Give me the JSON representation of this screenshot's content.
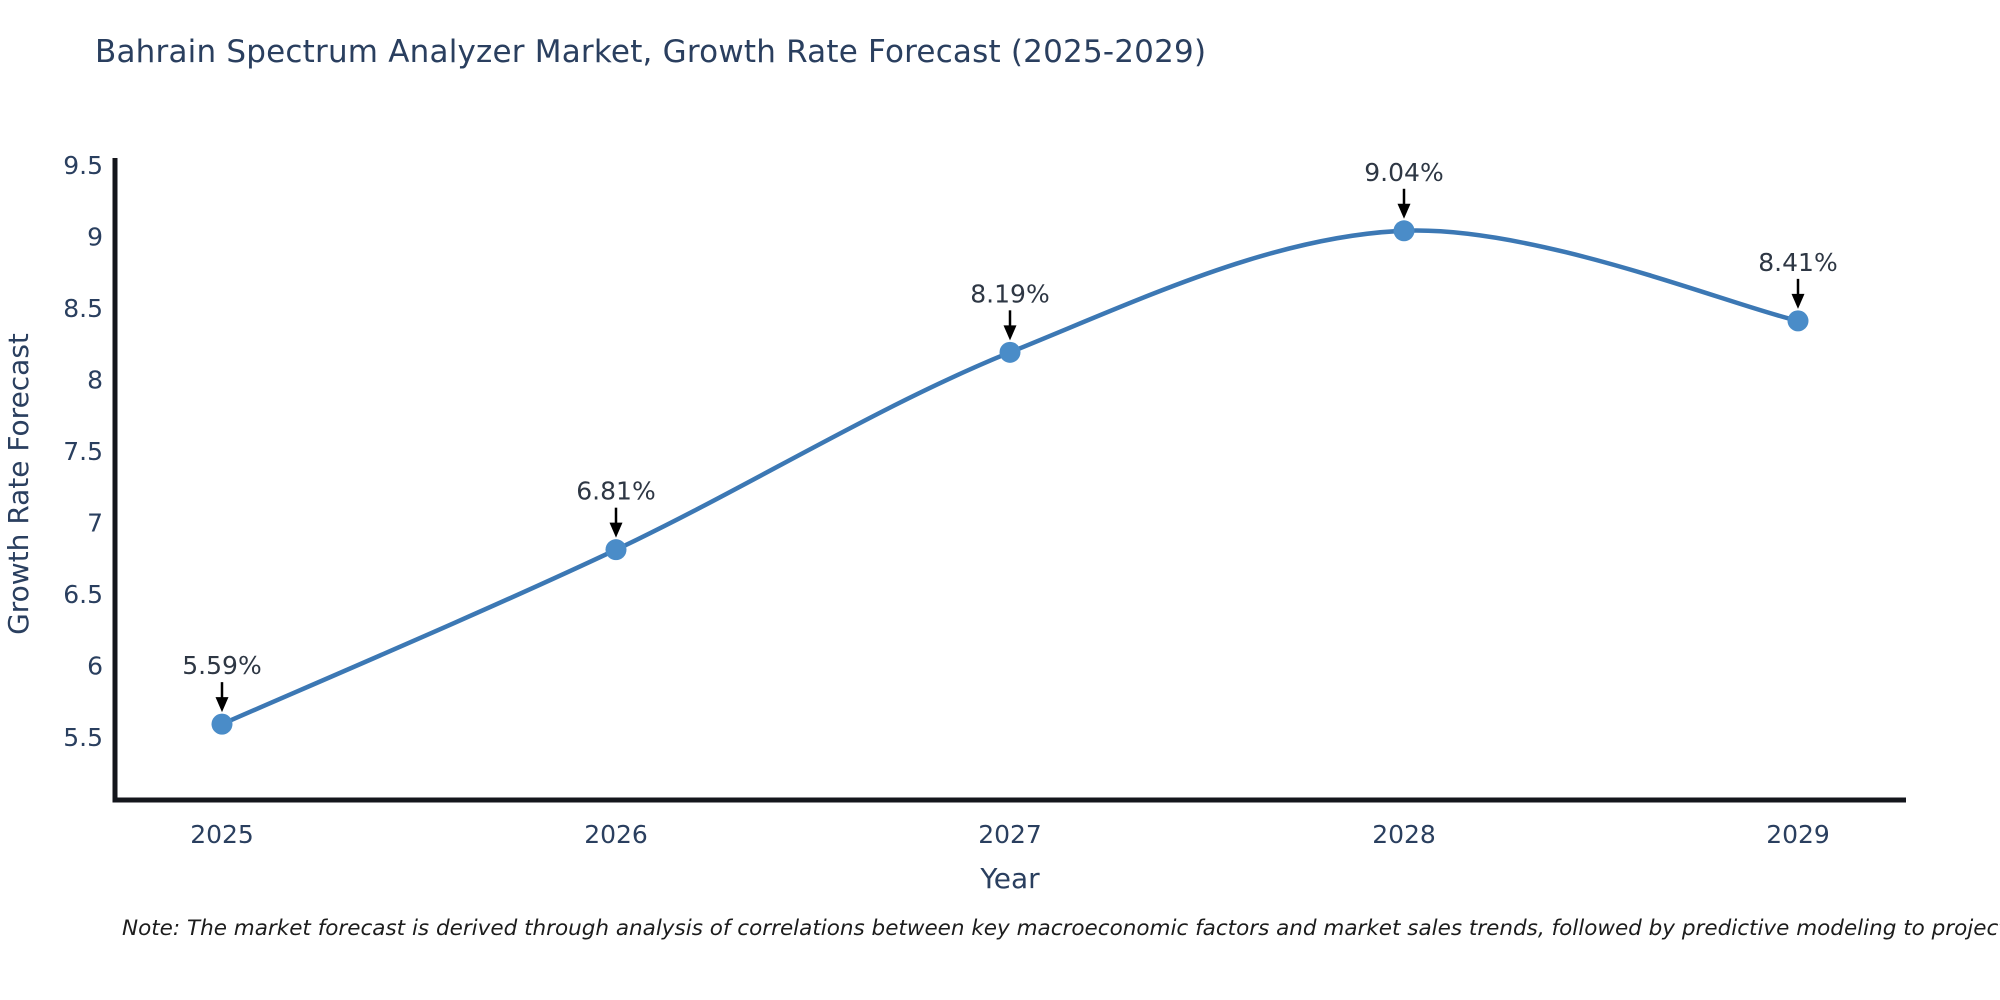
{
  "chart_data": {
    "type": "line",
    "title": "Bahrain Spectrum Analyzer Market, Growth Rate Forecast (2025-2029)",
    "xlabel": "Year",
    "ylabel": "Growth Rate Forecast",
    "categories": [
      "2025",
      "2026",
      "2027",
      "2028",
      "2029"
    ],
    "series": [
      {
        "name": "Growth Rate Forecast",
        "values": [
          5.59,
          6.81,
          8.19,
          9.04,
          8.41
        ],
        "point_labels": [
          "5.59%",
          "6.81%",
          "8.19%",
          "9.04%",
          "8.41%"
        ]
      }
    ],
    "y_ticks": [
      5.5,
      6,
      6.5,
      7,
      7.5,
      8,
      8.5,
      9,
      9.5
    ],
    "ylim": [
      5.06,
      9.5
    ],
    "line_shape": "spline",
    "grid": false,
    "legend_position": "none",
    "annotation_style": "value above point with black down arrow",
    "colors": {
      "line": "#3c78b4",
      "marker": "#4a8cc8",
      "axis": "#14161c",
      "text": "#2a3f5f",
      "annotation_text": "#2e3744",
      "arrow": "#000000",
      "background": "#ffffff"
    }
  },
  "note": "Note: The market forecast is derived through analysis of correlations between key macroeconomic factors and market sales trends, followed by predictive modeling to project future sales"
}
